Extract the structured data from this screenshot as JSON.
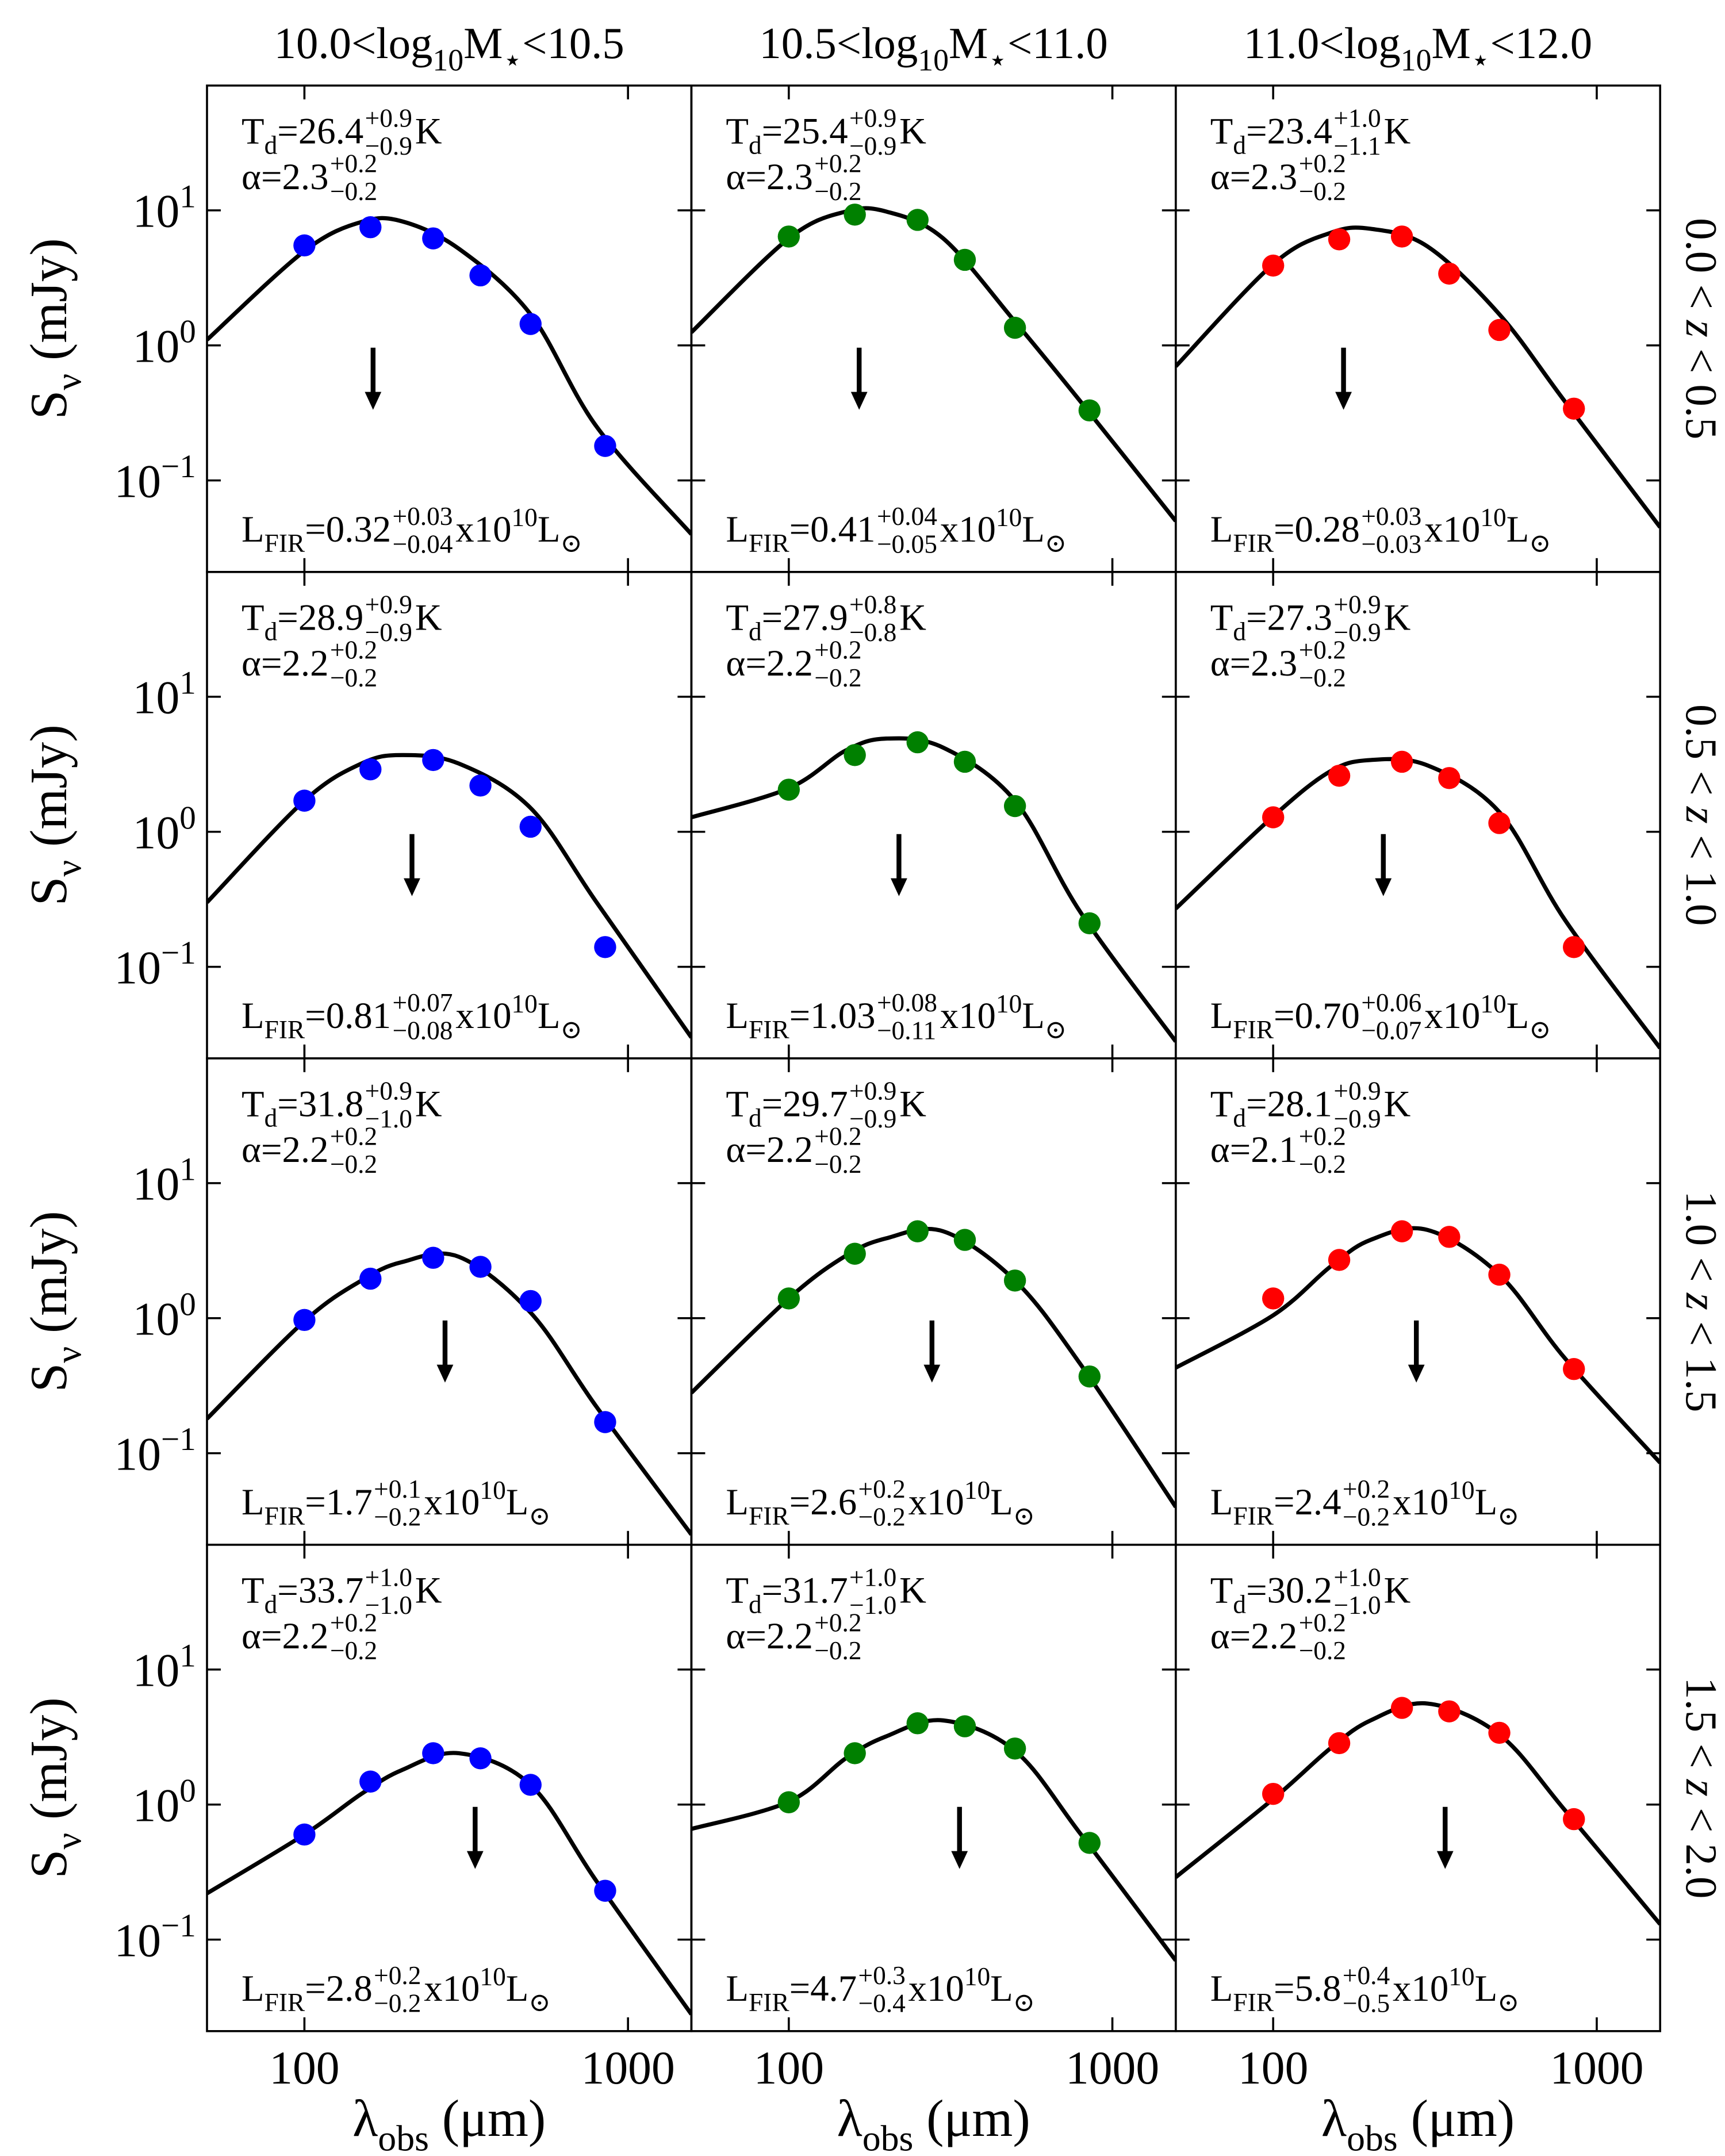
{
  "figure": {
    "col_titles": [
      [
        [
          "10.0<log",
          ""
        ],
        [
          "10",
          "sub"
        ],
        [
          "M",
          ""
        ],
        [
          "⋆",
          "sub"
        ],
        [
          "<10.5",
          ""
        ]
      ],
      [
        [
          "10.5<log",
          ""
        ],
        [
          "10",
          "sub"
        ],
        [
          "M",
          ""
        ],
        [
          "⋆",
          "sub"
        ],
        [
          "<11.0",
          ""
        ]
      ],
      [
        [
          "11.0<log",
          ""
        ],
        [
          "10",
          "sub"
        ],
        [
          "M",
          ""
        ],
        [
          "⋆",
          "sub"
        ],
        [
          "<12.0",
          ""
        ]
      ]
    ],
    "row_labels": [
      [
        [
          "0.0 < ",
          ""
        ],
        [
          "z",
          "it"
        ],
        [
          " < 0.5",
          ""
        ]
      ],
      [
        [
          "0.5 < ",
          ""
        ],
        [
          "z",
          "it"
        ],
        [
          " < 1.0",
          ""
        ]
      ],
      [
        [
          "1.0 < ",
          ""
        ],
        [
          "z",
          "it"
        ],
        [
          " < 1.5",
          ""
        ]
      ],
      [
        [
          "1.5 < ",
          ""
        ],
        [
          "z",
          "it"
        ],
        [
          " < 2.0",
          ""
        ]
      ]
    ],
    "y_label": [
      [
        "S",
        ""
      ],
      [
        "ν",
        "sub"
      ],
      [
        " (mJy)",
        ""
      ]
    ],
    "x_label": [
      [
        "λ",
        ""
      ],
      [
        "obs",
        "sub"
      ],
      [
        " (μm)",
        ""
      ]
    ],
    "labels": {
      "t": "T",
      "d": "d",
      "eq": "=",
      "k": "K",
      "alpha": "α",
      "l": "L",
      "fir": "FIR",
      "x10": "x10",
      "ten": "10",
      "odot": "⊙"
    }
  },
  "chart_data": [
    {
      "type": "scatter",
      "color": "#0000ff",
      "x": [
        100,
        160,
        250,
        350,
        500,
        850
      ],
      "values": [
        5.5,
        7.5,
        6.2,
        3.3,
        1.44,
        0.18
      ],
      "fit": {
        "color": "#000000",
        "x": [
          50,
          100,
          150,
          200,
          300,
          500,
          800,
          1570
        ],
        "values": [
          1.1,
          5.0,
          8.2,
          8.3,
          5.2,
          1.7,
          0.25,
          0.04
        ]
      },
      "arrow_x": 163,
      "td": [
        "26.4",
        "+0.9",
        "−0.9"
      ],
      "alpha": [
        "2.3",
        "+0.2",
        "−0.2"
      ],
      "lfir": [
        "0.32",
        "+0.03",
        "−0.04"
      ],
      "log": true,
      "xlim": [
        50,
        1570
      ],
      "ylim": [
        0.021,
        84
      ],
      "xticks": [
        100,
        1000
      ],
      "yticks": [
        {
          "value": 0.1,
          "label": "10",
          "exp": "−1"
        },
        {
          "value": 1,
          "label": "10",
          "exp": "0"
        },
        {
          "value": 10,
          "label": "10",
          "exp": "1"
        }
      ]
    },
    {
      "type": "scatter",
      "color": "#008000",
      "x": [
        100,
        160,
        250,
        350,
        500,
        850
      ],
      "values": [
        6.4,
        9.3,
        8.5,
        4.3,
        1.35,
        0.33
      ],
      "fit": {
        "color": "#000000",
        "x": [
          50,
          100,
          150,
          200,
          300,
          500,
          800,
          1570
        ],
        "values": [
          1.25,
          6.2,
          9.8,
          9.8,
          6.2,
          1.5,
          0.38,
          0.05
        ]
      },
      "arrow_x": 165,
      "td": [
        "25.4",
        "+0.9",
        "−0.9"
      ],
      "alpha": [
        "2.3",
        "+0.2",
        "−0.2"
      ],
      "lfir": [
        "0.41",
        "+0.04",
        "−0.05"
      ],
      "log": true,
      "xlim": [
        50,
        1570
      ],
      "ylim": [
        0.021,
        84
      ],
      "xticks": [
        100,
        1000
      ],
      "yticks": [
        {
          "value": 0.1,
          "label": "10",
          "exp": "−1"
        },
        {
          "value": 1,
          "label": "10",
          "exp": "0"
        },
        {
          "value": 10,
          "label": "10",
          "exp": "1"
        }
      ]
    },
    {
      "type": "scatter",
      "color": "#ff0000",
      "x": [
        100,
        160,
        250,
        350,
        500,
        850
      ],
      "values": [
        3.9,
        6.1,
        6.4,
        3.4,
        1.3,
        0.34
      ],
      "fit": {
        "color": "#000000",
        "x": [
          50,
          100,
          150,
          200,
          300,
          500,
          800,
          1570
        ],
        "values": [
          0.7,
          4.0,
          6.8,
          7.3,
          5.4,
          1.7,
          0.38,
          0.045
        ]
      },
      "arrow_x": 165,
      "td": [
        "23.4",
        "+1.0",
        "−1.1"
      ],
      "alpha": [
        "2.3",
        "+0.2",
        "−0.2"
      ],
      "lfir": [
        "0.28",
        "+0.03",
        "−0.03"
      ],
      "log": true,
      "xlim": [
        50,
        1570
      ],
      "ylim": [
        0.021,
        84
      ],
      "xticks": [
        100,
        1000
      ],
      "yticks": [
        {
          "value": 0.1,
          "label": "10",
          "exp": "−1"
        },
        {
          "value": 1,
          "label": "10",
          "exp": "0"
        },
        {
          "value": 10,
          "label": "10",
          "exp": "1"
        }
      ]
    },
    {
      "type": "scatter",
      "color": "#0000ff",
      "x": [
        100,
        160,
        250,
        350,
        500,
        850
      ],
      "values": [
        1.7,
        2.9,
        3.4,
        2.2,
        1.09,
        0.14
      ],
      "fit": {
        "color": "#000000",
        "x": [
          50,
          100,
          150,
          200,
          300,
          500,
          800,
          1570
        ],
        "values": [
          0.3,
          1.7,
          3.2,
          3.7,
          3.2,
          1.5,
          0.3,
          0.03
        ]
      },
      "arrow_x": 215,
      "td": [
        "28.9",
        "+0.9",
        "−0.9"
      ],
      "alpha": [
        "2.2",
        "+0.2",
        "−0.2"
      ],
      "lfir": [
        "0.81",
        "+0.07",
        "−0.08"
      ],
      "log": true,
      "xlim": [
        50,
        1570
      ],
      "ylim": [
        0.021,
        84
      ],
      "xticks": [
        100,
        1000
      ],
      "yticks": [
        {
          "value": 0.1,
          "label": "10",
          "exp": "−1"
        },
        {
          "value": 1,
          "label": "10",
          "exp": "0"
        },
        {
          "value": 10,
          "label": "10",
          "exp": "1"
        }
      ]
    },
    {
      "type": "scatter",
      "color": "#008000",
      "x": [
        100,
        160,
        250,
        350,
        500,
        850
      ],
      "values": [
        2.05,
        3.7,
        4.6,
        3.3,
        1.55,
        0.21
      ],
      "fit": {
        "color": "#000000",
        "x": [
          50,
          100,
          150,
          200,
          300,
          500,
          800,
          1570
        ],
        "values": [
          1.28,
          2.1,
          4.0,
          4.9,
          4.2,
          1.7,
          0.25,
          0.028
        ]
      },
      "arrow_x": 219,
      "td": [
        "27.9",
        "+0.8",
        "−0.8"
      ],
      "alpha": [
        "2.2",
        "+0.2",
        "−0.2"
      ],
      "lfir": [
        "1.03",
        "+0.08",
        "−0.11"
      ],
      "log": true,
      "xlim": [
        50,
        1570
      ],
      "ylim": [
        0.021,
        84
      ],
      "xticks": [
        100,
        1000
      ],
      "yticks": [
        {
          "value": 0.1,
          "label": "10",
          "exp": "−1"
        },
        {
          "value": 1,
          "label": "10",
          "exp": "0"
        },
        {
          "value": 10,
          "label": "10",
          "exp": "1"
        }
      ]
    },
    {
      "type": "scatter",
      "color": "#ff0000",
      "x": [
        100,
        160,
        250,
        350,
        500,
        850
      ],
      "values": [
        1.28,
        2.6,
        3.3,
        2.5,
        1.16,
        0.14
      ],
      "fit": {
        "color": "#000000",
        "x": [
          50,
          100,
          150,
          200,
          300,
          500,
          800,
          1570
        ],
        "values": [
          0.27,
          1.3,
          2.8,
          3.4,
          3.1,
          1.4,
          0.22,
          0.025
        ]
      },
      "arrow_x": 219,
      "td": [
        "27.3",
        "+0.9",
        "−0.9"
      ],
      "alpha": [
        "2.3",
        "+0.2",
        "−0.2"
      ],
      "lfir": [
        "0.70",
        "+0.06",
        "−0.07"
      ],
      "log": true,
      "xlim": [
        50,
        1570
      ],
      "ylim": [
        0.021,
        84
      ],
      "xticks": [
        100,
        1000
      ],
      "yticks": [
        {
          "value": 0.1,
          "label": "10",
          "exp": "−1"
        },
        {
          "value": 1,
          "label": "10",
          "exp": "0"
        },
        {
          "value": 10,
          "label": "10",
          "exp": "1"
        }
      ]
    },
    {
      "type": "scatter",
      "color": "#0000ff",
      "x": [
        100,
        160,
        250,
        350,
        500,
        850
      ],
      "values": [
        0.97,
        1.96,
        2.8,
        2.4,
        1.34,
        0.17
      ],
      "fit": {
        "color": "#000000",
        "x": [
          50,
          100,
          150,
          200,
          300,
          500,
          800,
          1570
        ],
        "values": [
          0.18,
          0.95,
          1.9,
          2.6,
          2.85,
          1.1,
          0.22,
          0.025
        ]
      },
      "arrow_x": 272,
      "td": [
        "31.8",
        "+0.9",
        "−1.0"
      ],
      "alpha": [
        "2.2",
        "+0.2",
        "−0.2"
      ],
      "lfir": [
        "1.7",
        "+0.1",
        "−0.2"
      ],
      "log": true,
      "xlim": [
        50,
        1570
      ],
      "ylim": [
        0.021,
        84
      ],
      "xticks": [
        100,
        1000
      ],
      "yticks": [
        {
          "value": 0.1,
          "label": "10",
          "exp": "−1"
        },
        {
          "value": 1,
          "label": "10",
          "exp": "0"
        },
        {
          "value": 10,
          "label": "10",
          "exp": "1"
        }
      ]
    },
    {
      "type": "scatter",
      "color": "#008000",
      "x": [
        100,
        160,
        250,
        350,
        500,
        850
      ],
      "values": [
        1.4,
        3.0,
        4.4,
        3.8,
        1.9,
        0.37
      ],
      "fit": {
        "color": "#000000",
        "x": [
          50,
          100,
          150,
          200,
          300,
          500,
          800,
          1570
        ],
        "values": [
          0.28,
          1.4,
          2.9,
          3.9,
          4.4,
          1.9,
          0.45,
          0.04
        ]
      },
      "arrow_x": 277,
      "td": [
        "29.7",
        "+0.9",
        "−0.9"
      ],
      "alpha": [
        "2.2",
        "+0.2",
        "−0.2"
      ],
      "lfir": [
        "2.6",
        "+0.2",
        "−0.2"
      ],
      "log": true,
      "xlim": [
        50,
        1570
      ],
      "ylim": [
        0.021,
        84
      ],
      "xticks": [
        100,
        1000
      ],
      "yticks": [
        {
          "value": 0.1,
          "label": "10",
          "exp": "−1"
        },
        {
          "value": 1,
          "label": "10",
          "exp": "0"
        },
        {
          "value": 10,
          "label": "10",
          "exp": "1"
        }
      ]
    },
    {
      "type": "scatter",
      "color": "#ff0000",
      "x": [
        100,
        160,
        250,
        350,
        500,
        850
      ],
      "values": [
        1.4,
        2.7,
        4.4,
        4.0,
        2.1,
        0.42
      ],
      "fit": {
        "color": "#000000",
        "x": [
          50,
          100,
          150,
          200,
          300,
          500,
          800,
          1570
        ],
        "values": [
          0.43,
          1.05,
          2.4,
          3.8,
          4.5,
          2.1,
          0.5,
          0.085
        ]
      },
      "arrow_x": 277,
      "td": [
        "28.1",
        "+0.9",
        "−0.9"
      ],
      "alpha": [
        "2.1",
        "+0.2",
        "−0.2"
      ],
      "lfir": [
        "2.4",
        "+0.2",
        "−0.2"
      ],
      "log": true,
      "xlim": [
        50,
        1570
      ],
      "ylim": [
        0.021,
        84
      ],
      "xticks": [
        100,
        1000
      ],
      "yticks": [
        {
          "value": 0.1,
          "label": "10",
          "exp": "−1"
        },
        {
          "value": 1,
          "label": "10",
          "exp": "0"
        },
        {
          "value": 10,
          "label": "10",
          "exp": "1"
        }
      ]
    },
    {
      "type": "scatter",
      "color": "#0000ff",
      "x": [
        100,
        160,
        250,
        350,
        500,
        850
      ],
      "values": [
        0.6,
        1.48,
        2.4,
        2.2,
        1.4,
        0.23
      ],
      "fit": {
        "color": "#000000",
        "x": [
          50,
          100,
          150,
          200,
          300,
          500,
          800,
          1570
        ],
        "values": [
          0.22,
          0.6,
          1.2,
          1.8,
          2.4,
          1.4,
          0.27,
          0.028
        ]
      },
      "arrow_x": 337,
      "td": [
        "33.7",
        "+1.0",
        "−1.0"
      ],
      "alpha": [
        "2.2",
        "+0.2",
        "−0.2"
      ],
      "lfir": [
        "2.8",
        "+0.2",
        "−0.2"
      ],
      "log": true,
      "xlim": [
        50,
        1570
      ],
      "ylim": [
        0.021,
        84
      ],
      "xticks": [
        100,
        1000
      ],
      "yticks": [
        {
          "value": 0.1,
          "label": "10",
          "exp": "−1"
        },
        {
          "value": 1,
          "label": "10",
          "exp": "0"
        },
        {
          "value": 10,
          "label": "10",
          "exp": "1"
        }
      ]
    },
    {
      "type": "scatter",
      "color": "#008000",
      "x": [
        100,
        160,
        250,
        350,
        500,
        850
      ],
      "values": [
        1.04,
        2.4,
        4.0,
        3.8,
        2.6,
        0.52
      ],
      "fit": {
        "color": "#000000",
        "x": [
          50,
          100,
          150,
          200,
          300,
          500,
          800,
          1570
        ],
        "values": [
          0.66,
          1.05,
          2.2,
          3.2,
          4.2,
          2.5,
          0.6,
          0.07
        ]
      },
      "arrow_x": 337,
      "td": [
        "31.7",
        "+1.0",
        "−1.0"
      ],
      "alpha": [
        "2.2",
        "+0.2",
        "−0.2"
      ],
      "lfir": [
        "4.7",
        "+0.3",
        "−0.4"
      ],
      "log": true,
      "xlim": [
        50,
        1570
      ],
      "ylim": [
        0.021,
        84
      ],
      "xticks": [
        100,
        1000
      ],
      "yticks": [
        {
          "value": 0.1,
          "label": "10",
          "exp": "−1"
        },
        {
          "value": 1,
          "label": "10",
          "exp": "0"
        },
        {
          "value": 10,
          "label": "10",
          "exp": "1"
        }
      ]
    },
    {
      "type": "scatter",
      "color": "#ff0000",
      "x": [
        100,
        160,
        250,
        350,
        500,
        850
      ],
      "values": [
        1.2,
        2.85,
        5.2,
        4.9,
        3.4,
        0.78
      ],
      "fit": {
        "color": "#000000",
        "x": [
          50,
          100,
          150,
          200,
          300,
          500,
          800,
          1570
        ],
        "values": [
          0.29,
          1.1,
          2.6,
          4.2,
          5.6,
          3.3,
          0.9,
          0.13
        ]
      },
      "arrow_x": 340,
      "td": [
        "30.2",
        "+1.0",
        "−1.0"
      ],
      "alpha": [
        "2.2",
        "+0.2",
        "−0.2"
      ],
      "lfir": [
        "5.8",
        "+0.4",
        "−0.5"
      ],
      "log": true,
      "xlim": [
        50,
        1570
      ],
      "ylim": [
        0.021,
        84
      ],
      "xticks": [
        100,
        1000
      ],
      "yticks": [
        {
          "value": 0.1,
          "label": "10",
          "exp": "−1"
        },
        {
          "value": 1,
          "label": "10",
          "exp": "0"
        },
        {
          "value": 10,
          "label": "10",
          "exp": "1"
        }
      ]
    }
  ]
}
